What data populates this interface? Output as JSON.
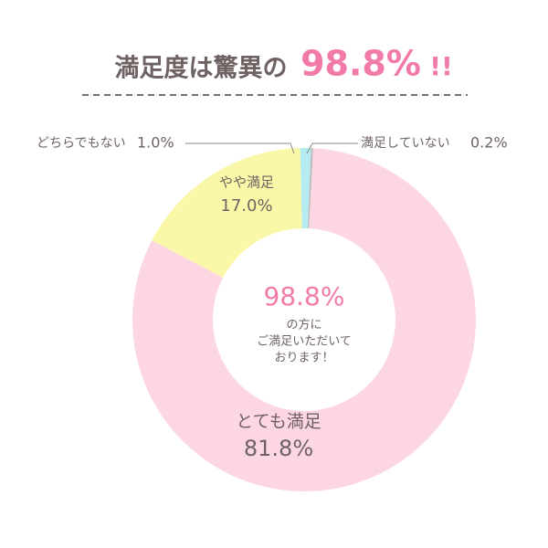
{
  "chart_data": {
    "type": "donut",
    "title": "満足度は驚異の",
    "title_highlight": "98.8%",
    "title_suffix": "!!",
    "categories": [
      "とても満足",
      "やや満足",
      "どちらでもない",
      "満足していない"
    ],
    "values": [
      81.8,
      17.0,
      1.0,
      0.2
    ],
    "value_labels": [
      "81.8%",
      "17.0%",
      "1.0%",
      "0.2%"
    ],
    "colors": [
      "#fdd6e4",
      "#fbf7a8",
      "#b4ecf1",
      "#bcbcbc"
    ],
    "center_highlight": "98.8%",
    "center_text": [
      "の方に",
      "ご満足いただいて",
      "おります！"
    ]
  }
}
